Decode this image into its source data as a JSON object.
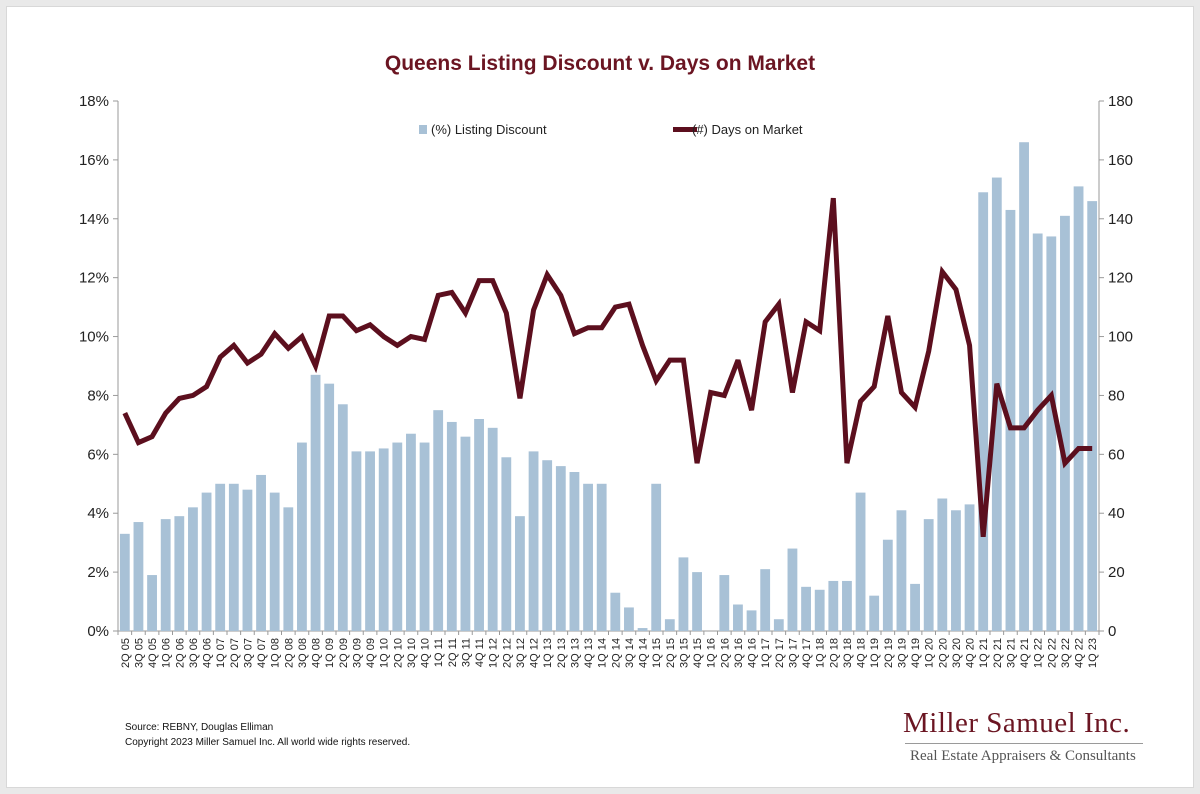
{
  "chart_data": {
    "type": "bar+line",
    "title": "Queens Listing Discount v. Days on Market",
    "categories": [
      "2Q 05",
      "3Q 05",
      "4Q 05",
      "1Q 06",
      "2Q 06",
      "3Q 06",
      "4Q 06",
      "1Q 07",
      "2Q 07",
      "3Q 07",
      "4Q 07",
      "1Q 08",
      "2Q 08",
      "3Q 08",
      "4Q 08",
      "1Q 09",
      "2Q 09",
      "3Q 09",
      "4Q 09",
      "1Q 10",
      "2Q 10",
      "3Q 10",
      "4Q 10",
      "1Q 11",
      "2Q 11",
      "3Q 11",
      "4Q 11",
      "1Q 12",
      "2Q 12",
      "3Q 12",
      "4Q 12",
      "1Q 13",
      "2Q 13",
      "3Q 13",
      "4Q 13",
      "1Q 14",
      "2Q 14",
      "3Q 14",
      "4Q 14",
      "1Q 15",
      "2Q 15",
      "3Q 15",
      "4Q 15",
      "1Q 16",
      "2Q 16",
      "3Q 16",
      "4Q 16",
      "1Q 17",
      "2Q 17",
      "3Q 17",
      "4Q 17",
      "1Q 18",
      "2Q 18",
      "3Q 18",
      "4Q 18",
      "1Q 19",
      "2Q 19",
      "3Q 19",
      "4Q 19",
      "1Q 20",
      "2Q 20",
      "3Q 20",
      "4Q 20",
      "1Q 21",
      "2Q 21",
      "3Q 21",
      "4Q 21",
      "1Q 22",
      "2Q 22",
      "3Q 22",
      "4Q 22",
      "1Q 23"
    ],
    "series": [
      {
        "name": "(%) Listing Discount",
        "type": "bar",
        "axis": "left",
        "color": "#a8c1d6",
        "values": [
          3.3,
          3.7,
          1.9,
          3.8,
          3.9,
          4.2,
          4.7,
          5.0,
          5.0,
          4.8,
          5.3,
          4.7,
          4.2,
          6.4,
          8.7,
          8.4,
          7.7,
          6.1,
          6.1,
          6.2,
          6.4,
          6.7,
          6.4,
          7.5,
          7.1,
          6.6,
          7.2,
          6.9,
          5.9,
          3.9,
          6.1,
          5.8,
          5.6,
          5.4,
          5.0,
          5.0,
          1.3,
          0.8,
          0.1,
          5.0,
          0.4,
          2.5,
          2.0,
          0.0,
          1.9,
          0.9,
          0.7,
          2.1,
          0.4,
          2.8,
          1.5,
          1.4,
          1.7,
          1.7,
          4.7,
          1.2,
          3.1,
          4.1,
          1.6,
          3.8,
          4.5,
          4.1,
          4.3,
          14.9,
          15.4,
          14.3,
          16.6,
          13.5,
          13.4,
          14.1,
          15.1,
          14.6
        ]
      },
      {
        "name": "(#) Days on Market",
        "type": "line",
        "axis": "right",
        "color": "#5c0f1e",
        "values": [
          74,
          64,
          66,
          74,
          79,
          80,
          83,
          93,
          97,
          91,
          94,
          101,
          96,
          100,
          90,
          107,
          107,
          102,
          104,
          100,
          97,
          100,
          99,
          114,
          115,
          108,
          119,
          119,
          108,
          79,
          109,
          121,
          114,
          101,
          103,
          103,
          110,
          111,
          97,
          85,
          92,
          92,
          57,
          81,
          80,
          92,
          75,
          105,
          111,
          81,
          105,
          102,
          147,
          57,
          78,
          83,
          107,
          81,
          76,
          95,
          122,
          116,
          97,
          32,
          84,
          69,
          69,
          75,
          80,
          57,
          62,
          62
        ]
      }
    ],
    "y_left": {
      "min": 0,
      "max": 18,
      "step": 2,
      "tick_labels": [
        "0%",
        "2%",
        "4%",
        "6%",
        "8%",
        "10%",
        "12%",
        "14%",
        "16%",
        "18%"
      ]
    },
    "y_right": {
      "min": 0,
      "max": 180,
      "step": 20,
      "tick_labels": [
        "0",
        "20",
        "40",
        "60",
        "80",
        "100",
        "120",
        "140",
        "160",
        "180"
      ]
    },
    "grid": false,
    "legend": "top"
  },
  "colors": {
    "title": "#6b1522",
    "bars": "#a8c1d6",
    "line": "#5c0f1e",
    "axis": "#9a9a9a"
  },
  "footer": {
    "source": "Source: REBNY, Douglas Elliman",
    "copyright": "Copyright 2023 Miller Samuel Inc.  All world wide rights reserved."
  },
  "logo": {
    "name": "Miller Samuel Inc.",
    "tagline": "Real Estate Appraisers & Consultants"
  }
}
